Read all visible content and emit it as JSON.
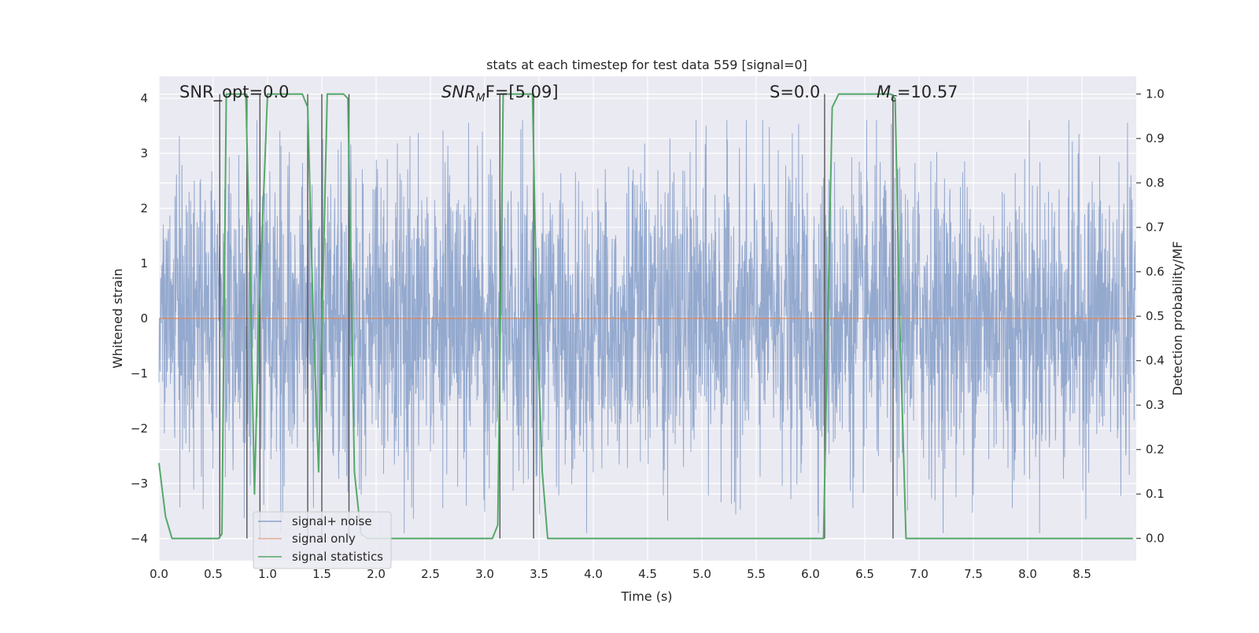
{
  "chart_data": {
    "type": "line",
    "title": "stats at each timestep for test data 559 [signal=0]",
    "xlabel": "Time (s)",
    "ylabel_left": "Whitened strain",
    "ylabel_right": "Detection probability/MF",
    "xlim": [
      0.0,
      9.0
    ],
    "ylim_left": [
      -4.4,
      4.4
    ],
    "ylim_right": [
      -0.05,
      1.04
    ],
    "xticks": [
      "0.0",
      "0.5",
      "1.0",
      "1.5",
      "2.0",
      "2.5",
      "3.0",
      "3.5",
      "4.0",
      "4.5",
      "5.0",
      "5.5",
      "6.0",
      "6.5",
      "7.0",
      "7.5",
      "8.0",
      "8.5"
    ],
    "yticks_left": [
      "4",
      "3",
      "2",
      "1",
      "0",
      "−1",
      "−2",
      "−3",
      "−4"
    ],
    "yticks_right": [
      "1.0",
      "0.9",
      "0.8",
      "0.7",
      "0.6",
      "0.5",
      "0.4",
      "0.3",
      "0.2",
      "0.1",
      "0.0"
    ],
    "grid": true,
    "legend_position": "lower-left",
    "annotations": {
      "snr_opt": "SNR_opt=0.0",
      "snr_mf_base": "SNR",
      "snr_mf_sub": "M",
      "snr_mf_rest": "F=[5.09]",
      "s_value": "S=0.0",
      "mc_base": "M",
      "mc_sub": "c",
      "mc_rest": "=10.57"
    },
    "series": [
      {
        "name": "signal+ noise",
        "axis": "left",
        "color": "#4c72b0",
        "style": "noise band, approx amplitude 1.4 sd, peaks to about ±3.5"
      },
      {
        "name": "signal only",
        "axis": "left",
        "color": "#dd8452",
        "x": [
          0.0,
          9.0
        ],
        "y": [
          0.0,
          0.0
        ]
      },
      {
        "name": "signal statistics",
        "axis": "right",
        "color": "#55a868",
        "x": [
          0.0,
          0.06,
          0.12,
          0.55,
          0.58,
          0.62,
          0.8,
          0.84,
          0.88,
          0.92,
          1.0,
          1.32,
          1.37,
          1.42,
          1.47,
          1.55,
          1.7,
          1.74,
          1.8,
          1.86,
          1.92,
          3.07,
          3.12,
          3.17,
          3.22,
          3.44,
          3.48,
          3.53,
          3.58,
          6.12,
          6.16,
          6.2,
          6.26,
          6.74,
          6.78,
          6.82,
          6.88,
          8.97
        ],
        "y": [
          0.17,
          0.05,
          0.0,
          0.0,
          0.01,
          1.0,
          1.0,
          0.6,
          0.1,
          0.5,
          1.0,
          1.0,
          0.97,
          0.5,
          0.15,
          1.0,
          1.0,
          0.99,
          0.15,
          0.01,
          0.0,
          0.0,
          0.03,
          1.0,
          1.0,
          1.0,
          0.5,
          0.15,
          0.0,
          0.0,
          0.5,
          0.97,
          1.0,
          1.0,
          0.99,
          0.5,
          0.0,
          0.0
        ]
      }
    ],
    "vertical_lines_x": [
      0.56,
      0.81,
      0.93,
      1.37,
      1.5,
      1.75,
      3.14,
      3.45,
      6.13,
      6.76
    ]
  }
}
